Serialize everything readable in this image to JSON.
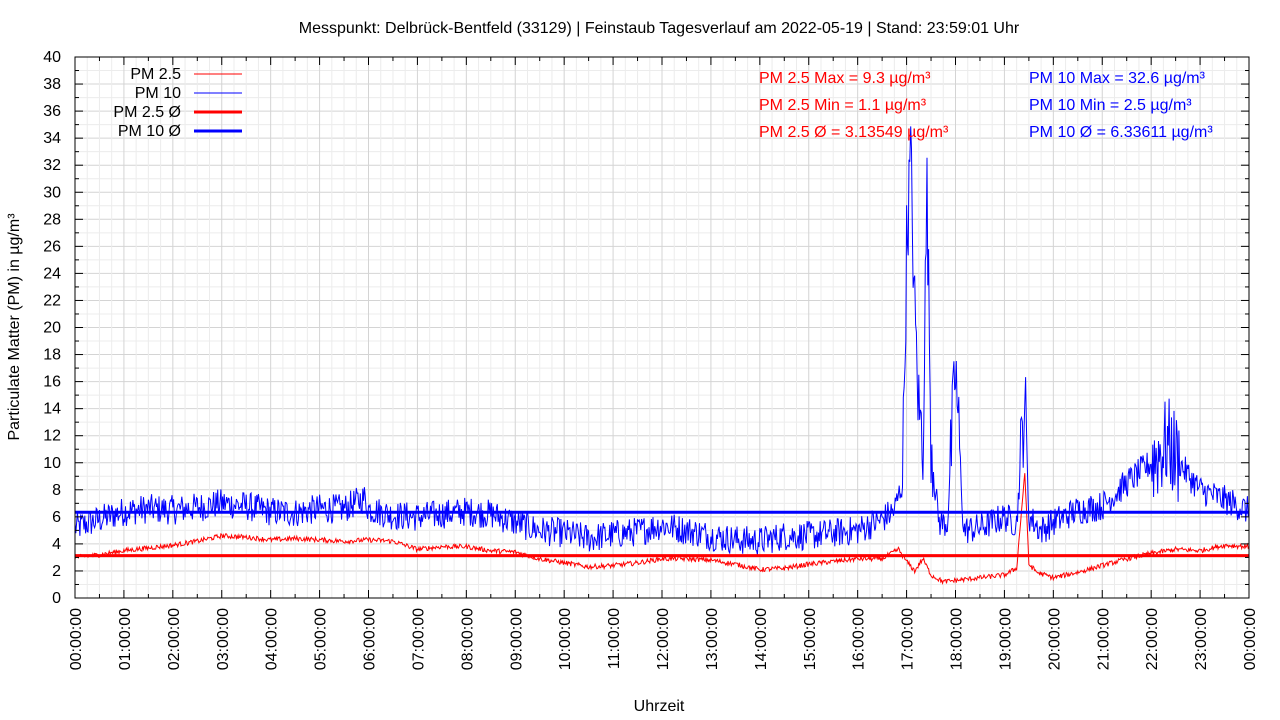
{
  "chart_data": {
    "type": "line",
    "title": "Messpunkt: Delbrück-Bentfeld (33129) | Feinstaub Tagesverlauf am 2022-05-19 | Stand: 23:59:01 Uhr",
    "xlabel": "Uhrzeit",
    "ylabel": "Particulate Matter (PM) in µg/m³",
    "ylim": [
      0,
      40
    ],
    "yticks": [
      "0",
      "2",
      "4",
      "6",
      "8",
      "10",
      "12",
      "14",
      "16",
      "18",
      "20",
      "22",
      "24",
      "26",
      "28",
      "30",
      "32",
      "34",
      "36",
      "38",
      "40"
    ],
    "xticks": [
      "00:00:00",
      "01:00:00",
      "02:00:00",
      "03:00:00",
      "04:00:00",
      "05:00:00",
      "06:00:00",
      "07:00:00",
      "08:00:00",
      "09:00:00",
      "10:00:00",
      "11:00:00",
      "12:00:00",
      "13:00:00",
      "14:00:00",
      "15:00:00",
      "16:00:00",
      "17:00:00",
      "18:00:00",
      "19:00:00",
      "20:00:00",
      "21:00:00",
      "22:00:00",
      "23:00:00",
      "00:00:00"
    ],
    "grid": true,
    "legend_position": "top-left",
    "series": [
      {
        "name": "PM 2.5",
        "color": "#ff0000",
        "x": [
          "00:00",
          "00:30",
          "01:00",
          "01:30",
          "02:00",
          "02:30",
          "03:00",
          "03:30",
          "04:00",
          "04:30",
          "05:00",
          "05:30",
          "06:00",
          "06:30",
          "07:00",
          "07:30",
          "08:00",
          "08:30",
          "09:00",
          "09:30",
          "10:00",
          "10:30",
          "11:00",
          "11:30",
          "12:00",
          "12:30",
          "13:00",
          "13:30",
          "14:00",
          "14:30",
          "15:00",
          "15:30",
          "16:00",
          "16:30",
          "16:50",
          "17:00",
          "17:10",
          "17:20",
          "17:30",
          "17:45",
          "18:00",
          "18:30",
          "19:00",
          "19:15",
          "19:25",
          "19:30",
          "19:40",
          "20:00",
          "20:30",
          "21:00",
          "21:30",
          "22:00",
          "22:30",
          "23:00",
          "23:30",
          "24:00"
        ],
        "values": [
          3.0,
          3.2,
          3.5,
          3.7,
          3.9,
          4.2,
          4.6,
          4.5,
          4.3,
          4.4,
          4.3,
          4.2,
          4.3,
          4.2,
          3.6,
          3.8,
          3.8,
          3.5,
          3.4,
          2.9,
          2.6,
          2.3,
          2.4,
          2.6,
          2.9,
          2.9,
          2.8,
          2.5,
          2.1,
          2.2,
          2.5,
          2.7,
          2.9,
          2.9,
          3.6,
          2.7,
          2.0,
          2.9,
          1.7,
          1.2,
          1.3,
          1.5,
          1.7,
          2.2,
          9.3,
          2.5,
          1.9,
          1.5,
          1.9,
          2.4,
          2.9,
          3.3,
          3.6,
          3.5,
          3.9,
          3.8
        ]
      },
      {
        "name": "PM 10",
        "color": "#0000ff",
        "x": [
          "00:00",
          "00:30",
          "01:00",
          "01:30",
          "02:00",
          "02:30",
          "03:00",
          "03:30",
          "04:00",
          "04:30",
          "05:00",
          "05:30",
          "05:55",
          "06:00",
          "06:30",
          "07:00",
          "07:30",
          "08:00",
          "08:30",
          "09:00",
          "09:30",
          "10:00",
          "10:30",
          "11:00",
          "11:30",
          "12:00",
          "12:30",
          "13:00",
          "13:30",
          "14:00",
          "14:30",
          "15:00",
          "15:30",
          "16:00",
          "16:30",
          "16:45",
          "16:55",
          "17:00",
          "17:05",
          "17:10",
          "17:15",
          "17:20",
          "17:25",
          "17:30",
          "17:35",
          "17:40",
          "17:50",
          "18:00",
          "18:10",
          "18:30",
          "19:00",
          "19:15",
          "19:25",
          "19:30",
          "19:45",
          "20:00",
          "20:30",
          "21:00",
          "21:30",
          "22:00",
          "22:20",
          "22:40",
          "23:00",
          "23:20",
          "23:40",
          "24:00"
        ],
        "values": [
          5.2,
          5.8,
          6.4,
          6.6,
          6.5,
          6.7,
          7.0,
          6.8,
          6.4,
          6.3,
          6.6,
          6.6,
          7.4,
          6.6,
          6.1,
          6.0,
          6.2,
          6.4,
          6.2,
          5.6,
          5.0,
          4.8,
          4.4,
          4.7,
          4.9,
          5.4,
          5.0,
          4.6,
          4.3,
          4.2,
          4.6,
          4.6,
          4.8,
          5.0,
          5.8,
          6.5,
          8.5,
          26.0,
          32.6,
          21.0,
          14.0,
          11.5,
          30.0,
          12.0,
          8.0,
          5.6,
          5.5,
          17.0,
          5.0,
          5.2,
          6.0,
          5.5,
          15.0,
          6.0,
          5.0,
          5.6,
          6.5,
          6.8,
          8.5,
          10.0,
          11.5,
          9.5,
          8.0,
          7.5,
          7.0,
          6.4
        ]
      },
      {
        "name": "PM 2.5 Ø",
        "color": "#ff0000",
        "value": 3.13549
      },
      {
        "name": "PM 10 Ø",
        "color": "#0000ff",
        "value": 6.33611
      }
    ],
    "annotations": [
      {
        "text": "PM 2.5 Max = 9.3 µg/m³",
        "color": "#ff0000"
      },
      {
        "text": "PM 2.5 Min = 1.1 µg/m³",
        "color": "#ff0000"
      },
      {
        "text": "PM 2.5 Ø = 3.13549 µg/m³",
        "color": "#ff0000"
      },
      {
        "text": "PM 10 Max = 32.6 µg/m³",
        "color": "#0000ff"
      },
      {
        "text": "PM 10 Min = 2.5 µg/m³",
        "color": "#0000ff"
      },
      {
        "text": "PM 10 Ø = 6.33611 µg/m³",
        "color": "#0000ff"
      }
    ]
  }
}
